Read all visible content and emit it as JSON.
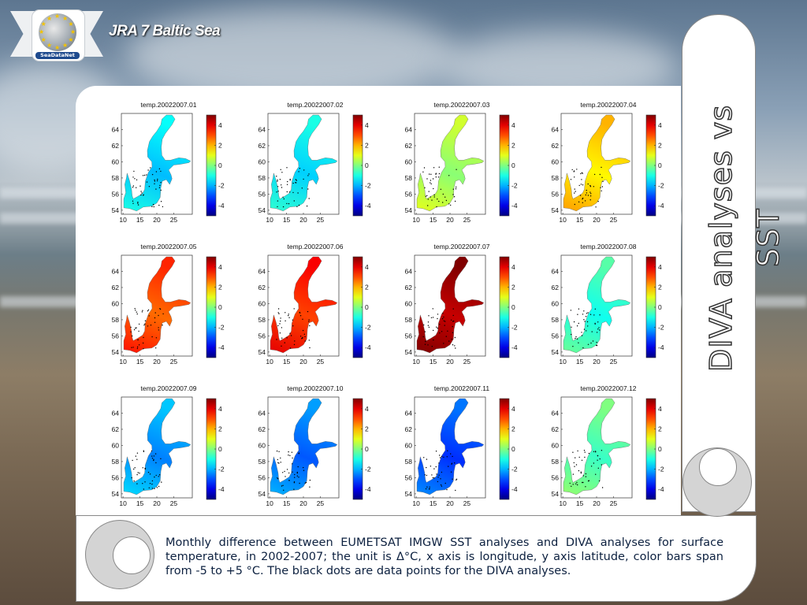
{
  "header": {
    "title": "JRA 7 Baltic Sea",
    "logo_text": "SeaDataNet"
  },
  "side_title": "DIVA analyses vs SST",
  "caption": "Monthly difference between EUMETSAT IMGW SST analyses and DIVA analyses for surface temperature, in 2002-2007; the unit is Δ°C, x axis is longitude, y axis latitude, color bars span from -5 to +5 °C. The black dots are data points for the DIVA analyses.",
  "colors": {
    "caption_text": "#0d2140",
    "title_text": "#ffffff"
  },
  "panels": [
    {
      "title": "temp.20022007.01",
      "tint": -1.6
    },
    {
      "title": "temp.20022007.02",
      "tint": -1.4
    },
    {
      "title": "temp.20022007.03",
      "tint": 0.4
    },
    {
      "title": "temp.20022007.04",
      "tint": 1.6
    },
    {
      "title": "temp.20022007.05",
      "tint": 3.0
    },
    {
      "title": "temp.20022007.06",
      "tint": 3.4
    },
    {
      "title": "temp.20022007.07",
      "tint": 4.6
    },
    {
      "title": "temp.20022007.08",
      "tint": -0.8
    },
    {
      "title": "temp.20022007.09",
      "tint": -2.2
    },
    {
      "title": "temp.20022007.10",
      "tint": -2.6
    },
    {
      "title": "temp.20022007.11",
      "tint": -3.0
    },
    {
      "title": "temp.20022007.12",
      "tint": -0.4
    }
  ],
  "axes": {
    "x_ticks": [
      "10",
      "15",
      "20",
      "25"
    ],
    "y_ticks": [
      "64",
      "62",
      "60",
      "58",
      "56",
      "54"
    ],
    "colorbar_ticks": [
      "4",
      "2",
      "0",
      "-2",
      "-4"
    ]
  }
}
